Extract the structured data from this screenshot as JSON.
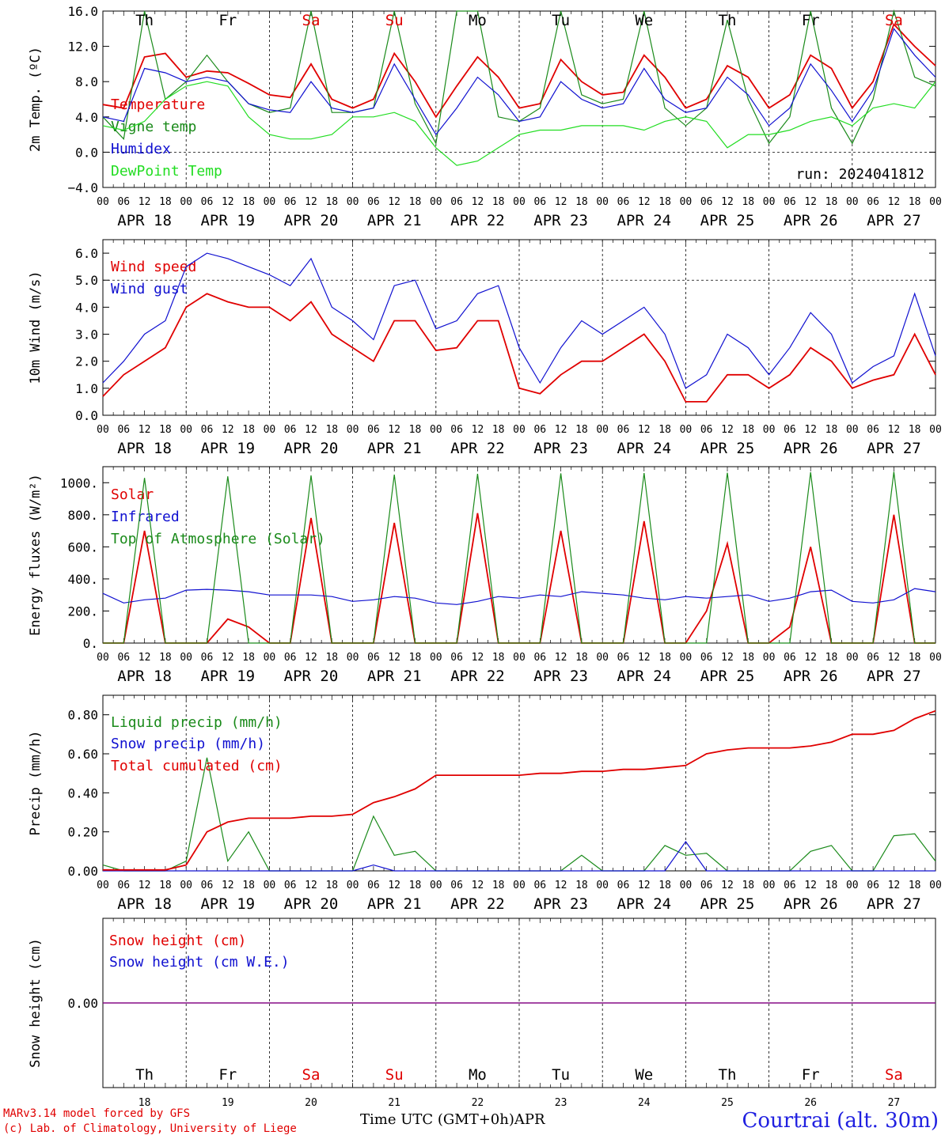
{
  "run_label": "run: 2024041812",
  "station": "Courtrai (alt. 30m)",
  "credits": [
    "MARv3.14 model forced by GFS",
    "(c) Lab. of Climatology, University of Liege"
  ],
  "x_axis_title": "Time UTC (GMT+0h)",
  "month": "APR",
  "hour_ticks": [
    "00",
    "06",
    "12",
    "18"
  ],
  "day_labels": [
    "APR 18",
    "APR 19",
    "APR 20",
    "APR 21",
    "APR 22",
    "APR 23",
    "APR 24",
    "APR 25",
    "APR 26",
    "APR 27"
  ],
  "day_numbers": [
    "18",
    "19",
    "20",
    "21",
    "22",
    "23",
    "24",
    "25",
    "26",
    "27"
  ],
  "weekdays": [
    "Th",
    "Fr",
    "Sa",
    "Su",
    "Mo",
    "Tu",
    "We",
    "Th",
    "Fr",
    "Sa"
  ],
  "weekend_color": "#e00000",
  "colors": {
    "red": "#e00000",
    "green": "#1a8a1a",
    "blue": "#1010d0",
    "light_green": "#22dd22",
    "purple": "#800080"
  },
  "chart_data": [
    {
      "type": "line",
      "ylabel": "2m Temp. (ºC)",
      "ylim": [
        -4,
        16
      ],
      "yticks": [
        "16.0",
        "12.0",
        "8.0",
        "4.0",
        "0.0",
        "−4.0"
      ],
      "yticks_values": [
        16,
        12,
        8,
        4,
        0,
        -4
      ],
      "reference_line": 0,
      "x_unit": "hours since APR 18 00 UTC",
      "x": [
        0,
        6,
        12,
        18,
        24,
        30,
        36,
        42,
        48,
        54,
        60,
        66,
        72,
        78,
        84,
        90,
        96,
        102,
        108,
        114,
        120,
        126,
        132,
        138,
        144,
        150,
        156,
        162,
        168,
        174,
        180,
        186,
        192,
        198,
        204,
        210,
        216,
        222,
        228,
        234,
        240
      ],
      "series": [
        {
          "name": "Temperature",
          "color": "red",
          "values": [
            5.4,
            5.0,
            10.8,
            11.2,
            8.5,
            9.2,
            9.0,
            7.8,
            6.5,
            6.2,
            10.0,
            6.0,
            5.0,
            6.0,
            11.2,
            8.0,
            4.0,
            7.5,
            10.8,
            8.5,
            5.0,
            5.5,
            10.5,
            8.0,
            6.5,
            6.8,
            11.0,
            8.5,
            5.0,
            6.0,
            9.8,
            8.5,
            5.0,
            6.5,
            11.0,
            9.5,
            5.0,
            8.0,
            14.5,
            12.0,
            9.8
          ]
        },
        {
          "name": "Vigne temp",
          "color": "green",
          "values": [
            4.0,
            1.5,
            16.5,
            6.0,
            8.0,
            11.0,
            8.0,
            5.5,
            4.5,
            5.0,
            16.5,
            4.5,
            4.5,
            5.0,
            16.5,
            5.5,
            1.0,
            16.5,
            16.5,
            4.0,
            3.5,
            5.0,
            16.0,
            6.5,
            5.5,
            6.0,
            16.5,
            5.0,
            3.0,
            5.0,
            15.0,
            6.0,
            1.0,
            4.0,
            16.5,
            5.0,
            1.0,
            6.0,
            16.5,
            8.5,
            7.5
          ]
        },
        {
          "name": "Humidex",
          "color": "blue",
          "values": [
            4.0,
            3.5,
            9.5,
            9.0,
            8.0,
            8.5,
            8.0,
            5.5,
            4.8,
            4.5,
            8.0,
            5.0,
            4.5,
            5.0,
            10.0,
            6.0,
            2.0,
            5.0,
            8.5,
            6.5,
            3.5,
            4.0,
            8.0,
            6.0,
            5.0,
            5.5,
            9.5,
            6.0,
            4.5,
            5.0,
            8.5,
            6.5,
            3.0,
            5.0,
            10.0,
            7.0,
            3.5,
            7.0,
            14.0,
            11.0,
            8.5
          ]
        },
        {
          "name": "DewPoint Temp",
          "color": "light_green",
          "values": [
            3.0,
            2.5,
            3.5,
            6.0,
            7.5,
            8.0,
            7.5,
            4.0,
            2.0,
            1.5,
            1.5,
            2.0,
            4.0,
            4.0,
            4.5,
            3.5,
            0.5,
            -1.5,
            -1.0,
            0.5,
            2.0,
            2.5,
            2.5,
            3.0,
            3.0,
            3.0,
            2.5,
            3.5,
            4.0,
            3.5,
            0.5,
            2.0,
            2.0,
            2.5,
            3.5,
            4.0,
            3.0,
            5.0,
            5.5,
            5.0,
            8.0
          ]
        }
      ]
    },
    {
      "type": "line",
      "ylabel": "10m Wind (m/s)",
      "ylim": [
        0,
        6.5
      ],
      "yticks": [
        "6.0",
        "5.0",
        "4.0",
        "3.0",
        "2.0",
        "1.0",
        "0.0"
      ],
      "yticks_values": [
        6,
        5,
        4,
        3,
        2,
        1,
        0
      ],
      "reference_line": 5,
      "x_unit": "hours since APR 18 00 UTC",
      "x": [
        0,
        6,
        12,
        18,
        24,
        30,
        36,
        42,
        48,
        54,
        60,
        66,
        72,
        78,
        84,
        90,
        96,
        102,
        108,
        114,
        120,
        126,
        132,
        138,
        144,
        150,
        156,
        162,
        168,
        174,
        180,
        186,
        192,
        198,
        204,
        210,
        216,
        222,
        228,
        234,
        240
      ],
      "series": [
        {
          "name": "Wind speed",
          "color": "red",
          "values": [
            0.7,
            1.5,
            2.0,
            2.5,
            4.0,
            4.5,
            4.2,
            4.0,
            4.0,
            3.5,
            4.2,
            3.0,
            2.5,
            2.0,
            3.5,
            3.5,
            2.4,
            2.5,
            3.5,
            3.5,
            1.0,
            0.8,
            1.5,
            2.0,
            2.0,
            2.5,
            3.0,
            2.0,
            0.5,
            0.5,
            1.5,
            1.5,
            1.0,
            1.5,
            2.5,
            2.0,
            1.0,
            1.3,
            1.5,
            3.0,
            1.5
          ]
        },
        {
          "name": "Wind gust",
          "color": "blue",
          "values": [
            1.2,
            2.0,
            3.0,
            3.5,
            5.5,
            6.0,
            5.8,
            5.5,
            5.2,
            4.8,
            5.8,
            4.0,
            3.5,
            2.8,
            4.8,
            5.0,
            3.2,
            3.5,
            4.5,
            4.8,
            2.5,
            1.2,
            2.5,
            3.5,
            3.0,
            3.5,
            4.0,
            3.0,
            1.0,
            1.5,
            3.0,
            2.5,
            1.5,
            2.5,
            3.8,
            3.0,
            1.2,
            1.8,
            2.2,
            4.5,
            2.2
          ]
        }
      ]
    },
    {
      "type": "line",
      "ylabel": "Energy fluxes (W/m²)",
      "ylim": [
        0,
        1100
      ],
      "yticks": [
        "1000.",
        "800.",
        "600.",
        "400.",
        "200.",
        "0."
      ],
      "yticks_values": [
        1000,
        800,
        600,
        400,
        200,
        0
      ],
      "x_unit": "hours since APR 18 00 UTC",
      "x": [
        0,
        6,
        12,
        18,
        24,
        30,
        36,
        42,
        48,
        54,
        60,
        66,
        72,
        78,
        84,
        90,
        96,
        102,
        108,
        114,
        120,
        126,
        132,
        138,
        144,
        150,
        156,
        162,
        168,
        174,
        180,
        186,
        192,
        198,
        204,
        210,
        216,
        222,
        228,
        234,
        240
      ],
      "series": [
        {
          "name": "Solar",
          "color": "red",
          "values": [
            0,
            0,
            700,
            0,
            0,
            0,
            150,
            100,
            0,
            0,
            780,
            0,
            0,
            0,
            750,
            0,
            0,
            0,
            810,
            0,
            0,
            0,
            700,
            0,
            0,
            0,
            760,
            0,
            0,
            200,
            620,
            0,
            0,
            100,
            600,
            0,
            0,
            0,
            800,
            0,
            0
          ]
        },
        {
          "name": "Infrared",
          "color": "blue",
          "values": [
            310,
            250,
            270,
            280,
            330,
            335,
            330,
            320,
            300,
            300,
            300,
            290,
            260,
            270,
            290,
            280,
            250,
            240,
            260,
            290,
            280,
            300,
            290,
            320,
            310,
            300,
            280,
            270,
            290,
            280,
            290,
            300,
            260,
            280,
            320,
            330,
            260,
            250,
            270,
            340,
            320
          ]
        },
        {
          "name": "Top of Atmosphere (Solar)",
          "color": "green",
          "values": [
            0,
            0,
            1030,
            0,
            0,
            0,
            1040,
            0,
            0,
            0,
            1045,
            0,
            0,
            0,
            1050,
            0,
            0,
            0,
            1055,
            0,
            0,
            0,
            1058,
            0,
            0,
            0,
            1060,
            0,
            0,
            0,
            1062,
            0,
            0,
            0,
            1065,
            0,
            0,
            0,
            1068,
            0,
            0
          ]
        }
      ]
    },
    {
      "type": "line",
      "ylabel": "Precip (mm/h)",
      "ylim": [
        0,
        0.9
      ],
      "yticks": [
        "0.80",
        "0.60",
        "0.40",
        "0.20",
        "0.00"
      ],
      "yticks_values": [
        0.8,
        0.6,
        0.4,
        0.2,
        0
      ],
      "x_unit": "hours since APR 18 00 UTC",
      "x": [
        0,
        6,
        12,
        18,
        24,
        30,
        36,
        42,
        48,
        54,
        60,
        66,
        72,
        78,
        84,
        90,
        96,
        102,
        108,
        114,
        120,
        126,
        132,
        138,
        144,
        150,
        156,
        162,
        168,
        174,
        180,
        186,
        192,
        198,
        204,
        210,
        216,
        222,
        228,
        234,
        240
      ],
      "series": [
        {
          "name": "Liquid precip (mm/h)",
          "color": "green",
          "values": [
            0.03,
            0,
            0,
            0,
            0.05,
            0.58,
            0.05,
            0.2,
            0,
            0,
            0,
            0,
            0,
            0.28,
            0.08,
            0.1,
            0,
            0,
            0,
            0,
            0,
            0,
            0,
            0.08,
            0,
            0,
            0,
            0.13,
            0.08,
            0.09,
            0,
            0,
            0,
            0,
            0.1,
            0.13,
            0,
            0,
            0.18,
            0.19,
            0.05
          ]
        },
        {
          "name": "Snow precip (mm/h)",
          "color": "blue",
          "values": [
            0,
            0,
            0,
            0,
            0,
            0,
            0,
            0,
            0,
            0,
            0,
            0,
            0,
            0.03,
            0,
            0,
            0,
            0,
            0,
            0,
            0,
            0,
            0,
            0,
            0,
            0,
            0,
            0,
            0.15,
            0,
            0,
            0,
            0,
            0,
            0,
            0,
            0,
            0,
            0,
            0,
            0
          ]
        },
        {
          "name": "Total cumulated (cm)",
          "color": "red",
          "values": [
            0.005,
            0.005,
            0.005,
            0.005,
            0.03,
            0.2,
            0.25,
            0.27,
            0.27,
            0.27,
            0.28,
            0.28,
            0.29,
            0.35,
            0.38,
            0.42,
            0.49,
            0.49,
            0.49,
            0.49,
            0.49,
            0.5,
            0.5,
            0.51,
            0.51,
            0.52,
            0.52,
            0.53,
            0.54,
            0.6,
            0.62,
            0.63,
            0.63,
            0.63,
            0.64,
            0.66,
            0.7,
            0.7,
            0.72,
            0.78,
            0.82
          ]
        }
      ]
    },
    {
      "type": "line",
      "ylabel": "Snow height (cm)",
      "yticks": [
        "0.00"
      ],
      "yticks_values": [
        0
      ],
      "ylim": [
        -1,
        1
      ],
      "x_unit": "hours since APR 18 00 UTC",
      "x": [
        0,
        240
      ],
      "series": [
        {
          "name": "Snow height (cm)",
          "color": "red",
          "values": [
            0,
            0
          ]
        },
        {
          "name": "Snow height (cm W.E.)",
          "color": "blue",
          "values": [
            0,
            0
          ]
        }
      ]
    }
  ]
}
